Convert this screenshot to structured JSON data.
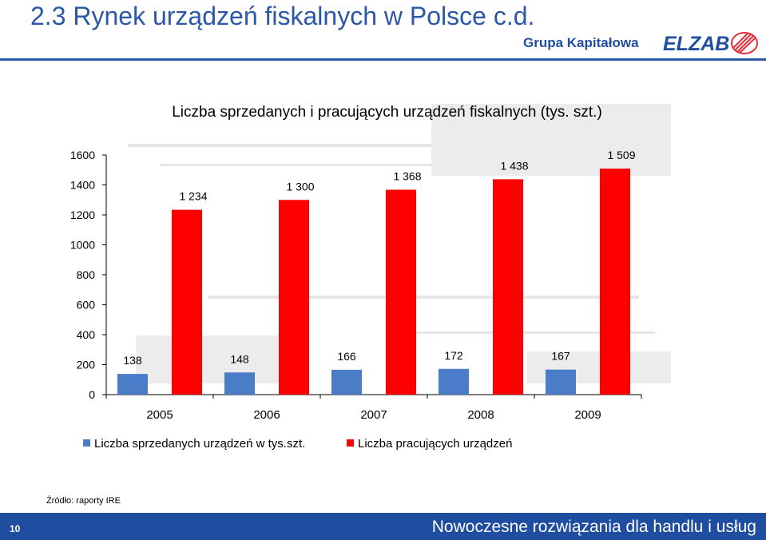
{
  "header": {
    "title": "2.3 Rynek urządzeń fiskalnych w Polsce c.d.",
    "brand": "Grupa Kapitałowa",
    "logo_text": "ELZAB"
  },
  "colors": {
    "accent_blue": "#2c57a8",
    "footer_blue": "#1f4ea1",
    "series_sold": "#4a7cc7",
    "series_working": "#ff0000"
  },
  "chart_data": {
    "type": "bar",
    "title": "Liczba sprzedanych i pracujących urządzeń fiskalnych (tys. szt.)",
    "categories": [
      "2005",
      "2006",
      "2007",
      "2008",
      "2009"
    ],
    "series": [
      {
        "name": "Liczba sprzedanych urządzeń w tys.szt.",
        "values": [
          138,
          148,
          166,
          172,
          167
        ],
        "labels": [
          "138",
          "148",
          "166",
          "172",
          "167"
        ]
      },
      {
        "name": "Liczba pracujących urządzeń",
        "values": [
          1234,
          1300,
          1368,
          1438,
          1509
        ],
        "labels": [
          "1 234",
          "1 300",
          "1 368",
          "1 438",
          "1 509"
        ]
      }
    ],
    "yticks": [
      "0",
      "200",
      "400",
      "600",
      "800",
      "1000",
      "1200",
      "1400",
      "1600"
    ],
    "ylim": [
      0,
      1600
    ],
    "grid": false,
    "legend_position": "bottom"
  },
  "source": "Źródło: raporty IRE",
  "footer": {
    "page_number": "10",
    "tagline": "Nowoczesne rozwiązania dla handlu i usług"
  }
}
